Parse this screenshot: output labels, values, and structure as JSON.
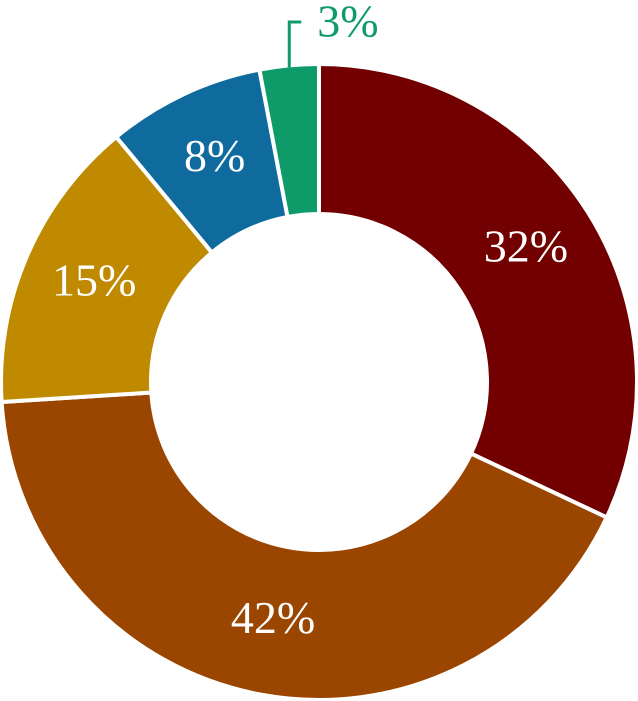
{
  "chart_data": {
    "type": "donut",
    "categories": [
      null,
      null,
      null,
      null,
      null
    ],
    "values": [
      32,
      42,
      15,
      8,
      3
    ],
    "value_labels": [
      "32%",
      "42%",
      "15%",
      "8%",
      "3%"
    ],
    "colors": [
      "#720000",
      "#9a4500",
      "#c08a00",
      "#0f6a9e",
      "#0f9a6a"
    ]
  }
}
